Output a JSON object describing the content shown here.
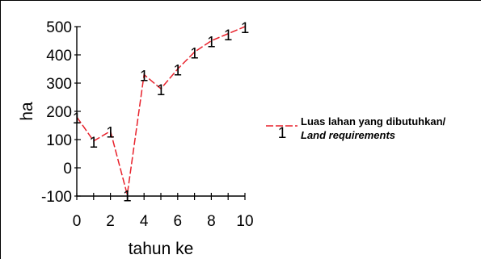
{
  "chart_data": {
    "type": "line",
    "title": "",
    "xlabel": "tahun ke",
    "ylabel": "ha",
    "xlim": [
      0,
      10
    ],
    "ylim": [
      -100,
      500
    ],
    "xticks": [
      0,
      2,
      4,
      6,
      8,
      10
    ],
    "yticks": [
      -100,
      0,
      100,
      200,
      300,
      400,
      500
    ],
    "grid": false,
    "legend_position": "right",
    "series": [
      {
        "name": "Luas lahan yang dibutuhkan/",
        "name_translation": "Land requirements",
        "marker": "1",
        "color": "#e8212b",
        "line_style": "dashed",
        "x": [
          0,
          1,
          2,
          3,
          4,
          5,
          6,
          7,
          8,
          9,
          10
        ],
        "y": [
          180,
          95,
          130,
          -95,
          330,
          280,
          350,
          410,
          450,
          475,
          500
        ]
      }
    ]
  }
}
